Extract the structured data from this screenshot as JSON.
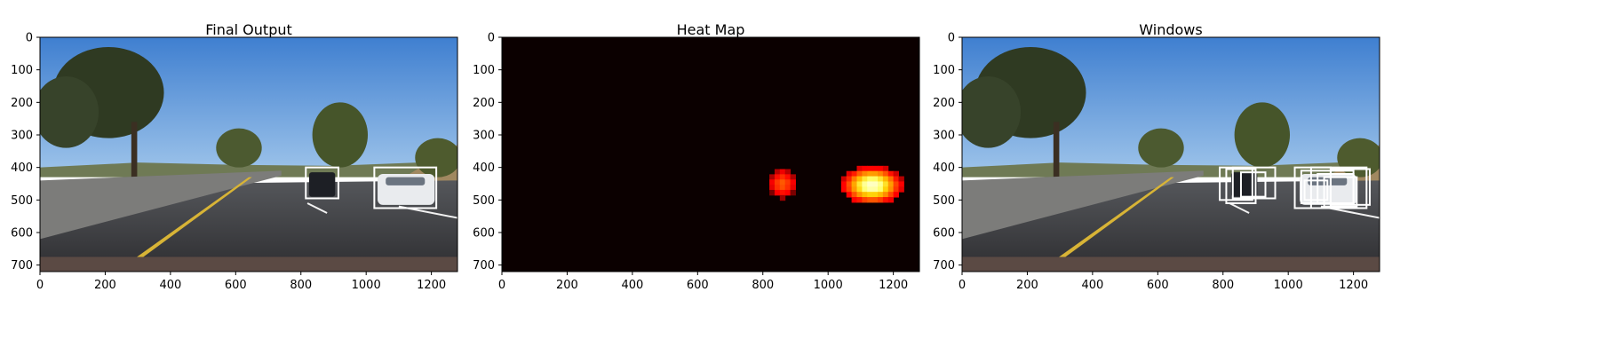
{
  "panels": [
    {
      "title": "Final Output",
      "kind": "photo",
      "boxes": "final"
    },
    {
      "title": "Heat Map",
      "kind": "heat"
    },
    {
      "title": "Windows",
      "kind": "photo",
      "boxes": "windows"
    }
  ],
  "axes": {
    "x_ticks": [
      "0",
      "200",
      "400",
      "600",
      "800",
      "1000",
      "1200"
    ],
    "x_values": [
      0,
      200,
      400,
      600,
      800,
      1000,
      1200
    ],
    "y_ticks": [
      "0",
      "100",
      "200",
      "300",
      "400",
      "500",
      "600",
      "700"
    ],
    "y_values": [
      0,
      100,
      200,
      300,
      400,
      500,
      600,
      700
    ],
    "x_range": [
      0,
      1280
    ],
    "y_range": [
      0,
      720
    ]
  },
  "detections": {
    "final": [
      {
        "x1": 815,
        "y1": 400,
        "x2": 915,
        "y2": 495
      },
      {
        "x1": 1025,
        "y1": 400,
        "x2": 1215,
        "y2": 525
      }
    ],
    "windows": [
      {
        "x1": 790,
        "y1": 400,
        "x2": 890,
        "y2": 500
      },
      {
        "x1": 810,
        "y1": 405,
        "x2": 900,
        "y2": 510
      },
      {
        "x1": 830,
        "y1": 400,
        "x2": 960,
        "y2": 495
      },
      {
        "x1": 855,
        "y1": 415,
        "x2": 930,
        "y2": 490
      },
      {
        "x1": 1020,
        "y1": 400,
        "x2": 1130,
        "y2": 525
      },
      {
        "x1": 1040,
        "y1": 410,
        "x2": 1200,
        "y2": 510
      },
      {
        "x1": 1070,
        "y1": 400,
        "x2": 1240,
        "y2": 525
      },
      {
        "x1": 1090,
        "y1": 420,
        "x2": 1200,
        "y2": 510
      },
      {
        "x1": 1110,
        "y1": 430,
        "x2": 1210,
        "y2": 520
      },
      {
        "x1": 1050,
        "y1": 440,
        "x2": 1120,
        "y2": 500
      },
      {
        "x1": 1130,
        "y1": 405,
        "x2": 1250,
        "y2": 515
      }
    ]
  },
  "heat_blobs": [
    {
      "cx": 860,
      "cy": 450,
      "rx": 40,
      "ry": 45,
      "intensity": 0.55
    },
    {
      "cx": 1135,
      "cy": 455,
      "rx": 95,
      "ry": 60,
      "intensity": 1.0
    }
  ],
  "colors": {
    "sky_top": "#3f7fd0",
    "sky_bottom": "#9ec4ea",
    "road": "#3a3a3d",
    "heat_bg": "#0b0000",
    "box": "#ffffff"
  }
}
